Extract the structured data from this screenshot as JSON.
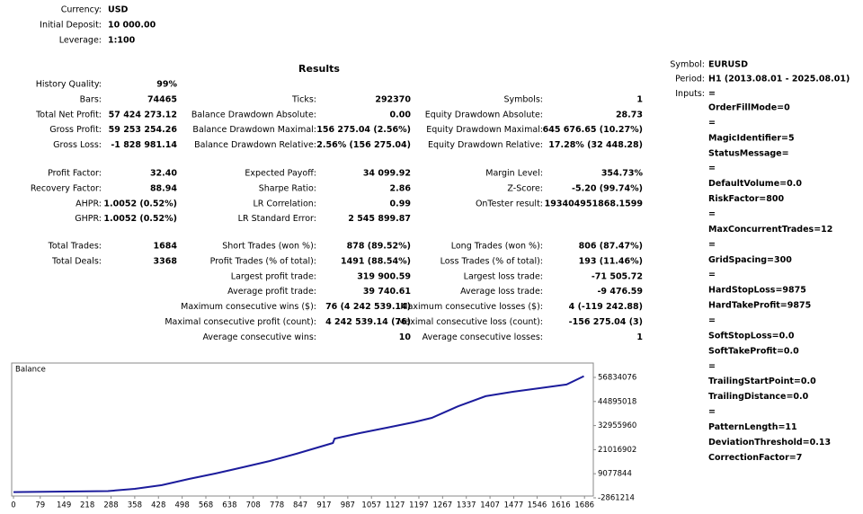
{
  "header": [
    {
      "label": "Currency:",
      "value": "USD"
    },
    {
      "label": "Initial Deposit:",
      "value": "10 000.00"
    },
    {
      "label": "Leverage:",
      "value": "1:100"
    }
  ],
  "results_title": "Results",
  "table": {
    "groups": [
      [
        [
          {
            "label": "History Quality:",
            "value": "99%"
          },
          null,
          null
        ],
        [
          {
            "label": "Bars:",
            "value": "74465"
          },
          {
            "label": "Ticks:",
            "value": "292370"
          },
          {
            "label": "Symbols:",
            "value": "1"
          }
        ],
        [
          {
            "label": "Total Net Profit:",
            "value": "57 424 273.12"
          },
          {
            "label": "Balance Drawdown Absolute:",
            "value": "0.00"
          },
          {
            "label": "Equity Drawdown Absolute:",
            "value": "28.73"
          }
        ],
        [
          {
            "label": "Gross Profit:",
            "value": "59 253 254.26"
          },
          {
            "label": "Balance Drawdown Maximal:",
            "value": "156 275.04 (2.56%)"
          },
          {
            "label": "Equity Drawdown Maximal:",
            "value": "645 676.65 (10.27%)"
          }
        ],
        [
          {
            "label": "Gross Loss:",
            "value": "-1 828 981.14"
          },
          {
            "label": "Balance Drawdown Relative:",
            "value": "2.56% (156 275.04)"
          },
          {
            "label": "Equity Drawdown Relative:",
            "value": "17.28% (32 448.28)"
          }
        ]
      ],
      [
        [
          {
            "label": "Profit Factor:",
            "value": "32.40"
          },
          {
            "label": "Expected Payoff:",
            "value": "34 099.92"
          },
          {
            "label": "Margin Level:",
            "value": "354.73%"
          }
        ],
        [
          {
            "label": "Recovery Factor:",
            "value": "88.94"
          },
          {
            "label": "Sharpe Ratio:",
            "value": "2.86"
          },
          {
            "label": "Z-Score:",
            "value": "-5.20 (99.74%)"
          }
        ],
        [
          {
            "label": "AHPR:",
            "value": "1.0052 (0.52%)"
          },
          {
            "label": "LR Correlation:",
            "value": "0.99"
          },
          {
            "label": "OnTester result:",
            "value": "193404951868.1599"
          }
        ],
        [
          {
            "label": "GHPR:",
            "value": "1.0052 (0.52%)"
          },
          {
            "label": "LR Standard Error:",
            "value": "2 545 899.87"
          },
          null
        ]
      ],
      [
        [
          {
            "label": "Total Trades:",
            "value": "1684"
          },
          {
            "label": "Short Trades (won %):",
            "value": "878 (89.52%)"
          },
          {
            "label": "Long Trades (won %):",
            "value": "806 (87.47%)"
          }
        ],
        [
          {
            "label": "Total Deals:",
            "value": "3368"
          },
          {
            "label": "Profit Trades (% of total):",
            "value": "1491 (88.54%)"
          },
          {
            "label": "Loss Trades (% of total):",
            "value": "193 (11.46%)"
          }
        ],
        [
          null,
          {
            "label": "Largest profit trade:",
            "value": "319 900.59"
          },
          {
            "label": "Largest loss trade:",
            "value": "-71 505.72"
          }
        ],
        [
          null,
          {
            "label": "Average profit trade:",
            "value": "39 740.61"
          },
          {
            "label": "Average loss trade:",
            "value": "-9 476.59"
          }
        ],
        [
          null,
          {
            "label": "Maximum consecutive wins ($):",
            "value": "76 (4 242 539.14)"
          },
          {
            "label": "Maximum consecutive losses ($):",
            "value": "4 (-119 242.88)"
          }
        ],
        [
          null,
          {
            "label": "Maximal consecutive profit (count):",
            "value": "4 242 539.14 (76)"
          },
          {
            "label": "Maximal consecutive loss (count):",
            "value": "-156 275.04 (3)"
          }
        ],
        [
          null,
          {
            "label": "Average consecutive wins:",
            "value": "10"
          },
          {
            "label": "Average consecutive losses:",
            "value": "1"
          }
        ]
      ]
    ]
  },
  "settings": [
    {
      "label": "Symbol:",
      "value": "EURUSD"
    },
    {
      "label": "Period:",
      "value": "H1 (2013.08.01 - 2025.08.01)"
    },
    {
      "label": "Inputs:",
      "value": "="
    }
  ],
  "inputs": [
    "OrderFillMode=0",
    "=",
    "MagicIdentifier=5",
    "StatusMessage=",
    "=",
    "DefaultVolume=0.0",
    "RiskFactor=800",
    "=",
    "MaxConcurrentTrades=12",
    "=",
    "GridSpacing=300",
    "=",
    "HardStopLoss=9875",
    "HardTakeProfit=9875",
    "=",
    "SoftStopLoss=0.0",
    "SoftTakeProfit=0.0",
    "=",
    "TrailingStartPoint=0.0",
    "TrailingDistance=0.0",
    "=",
    "PatternLength=11",
    "DeviationThreshold=0.13",
    "CorrectionFactor=7"
  ],
  "chart_data": {
    "type": "line",
    "title": "Balance",
    "color": "#1c1c9c",
    "x": [
      0,
      279,
      358,
      438,
      518,
      597,
      677,
      757,
      836,
      943,
      948,
      1022,
      1102,
      1182,
      1235,
      1314,
      1394,
      1474,
      1553,
      1633,
      1684
    ],
    "values": [
      10000,
      500000,
      1600000,
      3400000,
      6500000,
      9200000,
      12300000,
      15400000,
      19000000,
      24300000,
      26500000,
      29200000,
      31900000,
      34600000,
      36800000,
      42600000,
      47500000,
      49700000,
      51500000,
      53300000,
      57434273
    ],
    "xlim": [
      0,
      1712
    ],
    "xticks": [
      0,
      79,
      149,
      218,
      288,
      358,
      428,
      498,
      568,
      638,
      708,
      778,
      847,
      917,
      987,
      1057,
      1127,
      1197,
      1267,
      1337,
      1407,
      1477,
      1546,
      1616,
      1686
    ],
    "ylim": [
      -2861214,
      63960000
    ],
    "yticks": [
      -2861214,
      9077844,
      21016902,
      32955960,
      44895018,
      56834076
    ]
  }
}
